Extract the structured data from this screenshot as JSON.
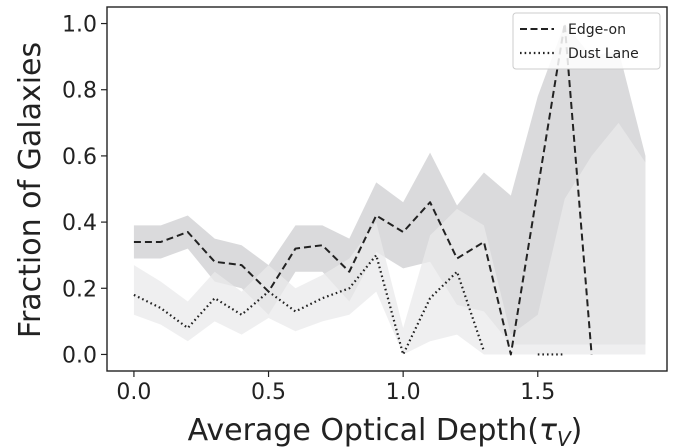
{
  "chart_data": {
    "type": "line",
    "xlabel_main": "Average Optical Depth(",
    "xlabel_symbol": "τ",
    "xlabel_sub": "V",
    "xlabel_close": ")",
    "ylabel": "Fraction of Galaxies",
    "xlim": [
      -0.1,
      1.98
    ],
    "ylim": [
      -0.05,
      1.05
    ],
    "xticks": [
      0.0,
      0.5,
      1.0,
      1.5
    ],
    "xtick_labels": [
      "0.0",
      "0.5",
      "1.0",
      "1.5"
    ],
    "yticks": [
      0.0,
      0.2,
      0.4,
      0.6,
      0.8,
      1.0
    ],
    "ytick_labels": [
      "0.0",
      "0.2",
      "0.4",
      "0.6",
      "0.8",
      "1.0"
    ],
    "grid": false,
    "legend_position": "top-right",
    "series": [
      {
        "name": "Edge-on",
        "style": "dashed",
        "color": "#222222",
        "band_color": "#d4d4d6",
        "points": [
          [
            0.0,
            0.34
          ],
          [
            0.1,
            0.34
          ],
          [
            0.2,
            0.37
          ],
          [
            0.3,
            0.28
          ],
          [
            0.4,
            0.27
          ],
          [
            0.5,
            0.19
          ],
          [
            0.6,
            0.32
          ],
          [
            0.7,
            0.33
          ],
          [
            0.8,
            0.25
          ],
          [
            0.9,
            0.42
          ],
          [
            1.0,
            0.37
          ],
          [
            1.1,
            0.46
          ],
          [
            1.2,
            0.29
          ],
          [
            1.3,
            0.34
          ],
          [
            1.4,
            0.0
          ],
          [
            1.5,
            0.5
          ],
          [
            1.6,
            1.0
          ],
          [
            1.7,
            0.0
          ]
        ],
        "band": {
          "x": [
            0.0,
            0.1,
            0.2,
            0.3,
            0.4,
            0.5,
            0.6,
            0.7,
            0.8,
            0.9,
            1.0,
            1.1,
            1.2,
            1.3,
            1.4,
            1.5,
            1.6,
            1.7,
            1.8,
            1.9
          ],
          "upper": [
            0.39,
            0.39,
            0.42,
            0.35,
            0.33,
            0.27,
            0.39,
            0.39,
            0.35,
            0.52,
            0.46,
            0.61,
            0.45,
            0.55,
            0.48,
            0.78,
            1.0,
            0.9,
            0.92,
            0.6
          ],
          "lower": [
            0.29,
            0.29,
            0.32,
            0.22,
            0.2,
            0.12,
            0.25,
            0.25,
            0.16,
            0.31,
            0.26,
            0.28,
            0.15,
            0.13,
            0.03,
            0.03,
            0.03,
            0.03,
            0.03,
            0.03
          ]
        }
      },
      {
        "name": "Dust Lane",
        "style": "dotted",
        "color": "#222222",
        "band_color": "#e9e9eb",
        "points": [
          [
            0.0,
            0.18
          ],
          [
            0.1,
            0.14
          ],
          [
            0.2,
            0.08
          ],
          [
            0.3,
            0.17
          ],
          [
            0.4,
            0.12
          ],
          [
            0.5,
            0.19
          ],
          [
            0.6,
            0.13
          ],
          [
            0.7,
            0.17
          ],
          [
            0.8,
            0.2
          ],
          [
            0.9,
            0.3
          ],
          [
            1.0,
            0.0
          ],
          [
            1.1,
            0.17
          ],
          [
            1.2,
            0.25
          ],
          [
            1.3,
            0.01
          ]
        ],
        "extra_segments": [
          [
            [
              1.5,
              0.0
            ],
            [
              1.6,
              0.0
            ]
          ]
        ],
        "band": {
          "x": [
            0.0,
            0.1,
            0.2,
            0.3,
            0.4,
            0.5,
            0.6,
            0.7,
            0.8,
            0.9,
            1.0,
            1.1,
            1.2,
            1.3,
            1.4,
            1.5,
            1.6,
            1.7,
            1.8,
            1.9
          ],
          "upper": [
            0.27,
            0.22,
            0.16,
            0.25,
            0.19,
            0.27,
            0.2,
            0.24,
            0.29,
            0.4,
            0.08,
            0.36,
            0.44,
            0.39,
            0.06,
            0.12,
            0.47,
            0.6,
            0.7,
            0.58
          ],
          "lower": [
            0.12,
            0.09,
            0.04,
            0.1,
            0.06,
            0.11,
            0.07,
            0.1,
            0.12,
            0.19,
            0.0,
            0.04,
            0.06,
            0.0,
            0.0,
            0.0,
            0.0,
            0.0,
            0.0,
            0.0
          ]
        }
      }
    ]
  }
}
